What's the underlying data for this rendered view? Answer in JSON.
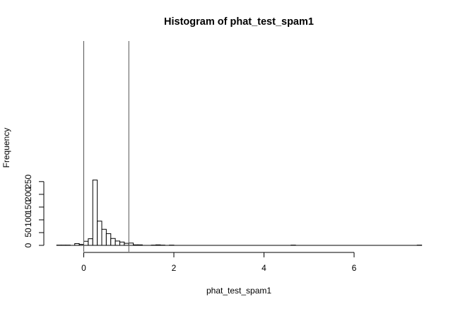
{
  "chart_data": {
    "type": "histogram",
    "title": "Histogram of phat_test_spam1",
    "xlabel": "phat_test_spam1",
    "ylabel": "Frequency",
    "xlim": [
      -0.6,
      7.5
    ],
    "ylim": [
      0,
      270
    ],
    "x_ticks": [
      0,
      2,
      4,
      6
    ],
    "y_ticks": [
      0,
      50,
      100,
      150,
      200,
      250
    ],
    "bin_width": 0.1,
    "bins": [
      {
        "x0": -0.6,
        "count": 1
      },
      {
        "x0": -0.5,
        "count": 1
      },
      {
        "x0": -0.4,
        "count": 1
      },
      {
        "x0": -0.3,
        "count": 0
      },
      {
        "x0": -0.2,
        "count": 7
      },
      {
        "x0": -0.1,
        "count": 4
      },
      {
        "x0": 0.0,
        "count": 16
      },
      {
        "x0": 0.1,
        "count": 26
      },
      {
        "x0": 0.2,
        "count": 256
      },
      {
        "x0": 0.3,
        "count": 95
      },
      {
        "x0": 0.4,
        "count": 63
      },
      {
        "x0": 0.5,
        "count": 46
      },
      {
        "x0": 0.6,
        "count": 27
      },
      {
        "x0": 0.7,
        "count": 17
      },
      {
        "x0": 0.8,
        "count": 13
      },
      {
        "x0": 0.9,
        "count": 8
      },
      {
        "x0": 1.0,
        "count": 9
      },
      {
        "x0": 1.1,
        "count": 2
      },
      {
        "x0": 1.2,
        "count": 2
      },
      {
        "x0": 1.3,
        "count": 0
      },
      {
        "x0": 1.4,
        "count": 0
      },
      {
        "x0": 1.5,
        "count": 1
      },
      {
        "x0": 1.6,
        "count": 2
      },
      {
        "x0": 1.7,
        "count": 1
      },
      {
        "x0": 1.8,
        "count": 0
      },
      {
        "x0": 1.9,
        "count": 1
      },
      {
        "x0": 4.6,
        "count": 1
      },
      {
        "x0": 7.4,
        "count": 1
      }
    ],
    "reference_lines": [
      0,
      1
    ],
    "bar_fill": "#ffffff",
    "bar_stroke": "#000000",
    "reference_line_color": "#555555",
    "grid": false,
    "legend": "none"
  }
}
